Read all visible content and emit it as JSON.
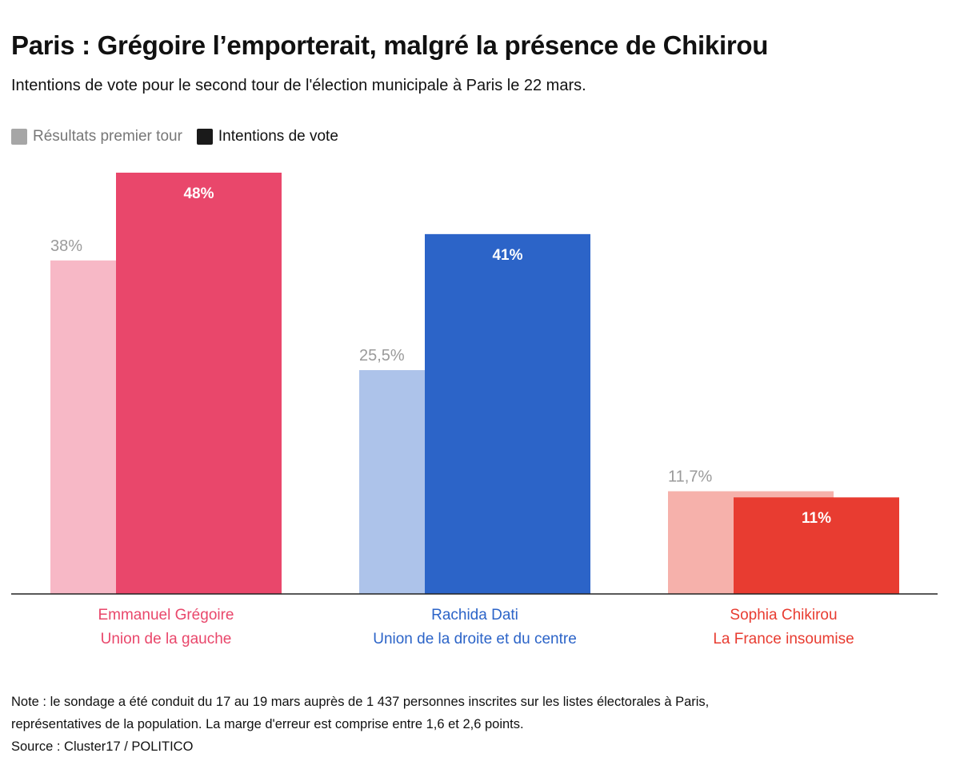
{
  "title": "Paris : Grégoire l’emporterait, malgré la présence de Chikirou",
  "subtitle": "Intentions de vote pour le second tour de l'élection municipale à Paris le 22 mars.",
  "legend": {
    "first_round": "Résultats premier tour",
    "vote_intentions": "Intentions de vote",
    "first_round_color": "#a6a6a6",
    "vote_intentions_color": "#1a1a1a"
  },
  "chart_data": {
    "type": "bar",
    "title": "Paris : Grégoire l’emporterait, malgré la présence de Chikirou",
    "ylim": [
      0,
      48
    ],
    "grid": false,
    "legend_position": "top-left",
    "series": [
      {
        "name": "Résultats premier tour",
        "values": [
          38,
          25.5,
          11.7
        ]
      },
      {
        "name": "Intentions de vote",
        "values": [
          48,
          41,
          11
        ]
      }
    ],
    "candidates": [
      {
        "name": "Emmanuel Grégoire",
        "party": "Union de la gauche",
        "first_round": 38,
        "first_round_label": "38%",
        "intention": 48,
        "intention_label": "48%",
        "color": "#e9476b",
        "light_color": "#f7b8c6"
      },
      {
        "name": "Rachida Dati",
        "party": "Union de la droite et du centre",
        "first_round": 25.5,
        "first_round_label": "25,5%",
        "intention": 41,
        "intention_label": "41%",
        "color": "#2c64c8",
        "light_color": "#adc3ea"
      },
      {
        "name": "Sophia Chikirou",
        "party": "La France insoumise",
        "first_round": 11.7,
        "first_round_label": "11,7%",
        "intention": 11,
        "intention_label": "11%",
        "color": "#e83c31",
        "light_color": "#f6b1ab"
      }
    ]
  },
  "note": {
    "line1": "Note : le sondage a été conduit du 17 au 19 mars auprès de 1 437 personnes inscrites sur les listes électorales à Paris,",
    "line2": "représentatives de la population. La marge d'erreur est comprise entre 1,6 et 2,6 points.",
    "source": "Source : Cluster17 / POLITICO"
  }
}
